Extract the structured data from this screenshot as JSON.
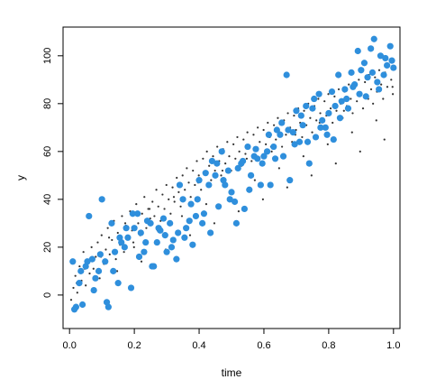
{
  "chart_data": {
    "type": "scatter",
    "title": "",
    "xlabel": "time",
    "ylabel": "y",
    "xlim": [
      -0.02,
      1.02
    ],
    "ylim": [
      -14,
      112
    ],
    "x_ticks": [
      {
        "value": 0.0,
        "label": "0.0"
      },
      {
        "value": 0.2,
        "label": "0.2"
      },
      {
        "value": 0.4,
        "label": "0.4"
      },
      {
        "value": 0.6,
        "label": "0.6"
      },
      {
        "value": 0.8,
        "label": "0.8"
      },
      {
        "value": 1.0,
        "label": "1.0"
      }
    ],
    "y_ticks": [
      {
        "value": 0,
        "label": "0"
      },
      {
        "value": 20,
        "label": "20"
      },
      {
        "value": 40,
        "label": "40"
      },
      {
        "value": 60,
        "label": "60"
      },
      {
        "value": 80,
        "label": "80"
      },
      {
        "value": 100,
        "label": "100"
      }
    ],
    "grid": false,
    "legend": "none",
    "colors": {
      "highlight": "#2f8fdc",
      "background_points": "#333333",
      "axis": "#000000"
    },
    "series": [
      {
        "color": "#2f8fdc",
        "marker": "large-dot",
        "x": [
          0.01,
          0.02,
          0.03,
          0.04,
          0.05,
          0.06,
          0.07,
          0.08,
          0.09,
          0.1,
          0.11,
          0.12,
          0.13,
          0.14,
          0.15,
          0.16,
          0.17,
          0.18,
          0.19,
          0.2,
          0.21,
          0.22,
          0.23,
          0.24,
          0.25,
          0.26,
          0.27,
          0.28,
          0.29,
          0.3,
          0.31,
          0.32,
          0.33,
          0.34,
          0.35,
          0.36,
          0.37,
          0.38,
          0.39,
          0.4,
          0.41,
          0.42,
          0.43,
          0.44,
          0.45,
          0.46,
          0.47,
          0.48,
          0.49,
          0.5,
          0.51,
          0.52,
          0.53,
          0.54,
          0.55,
          0.56,
          0.57,
          0.58,
          0.59,
          0.6,
          0.61,
          0.62,
          0.63,
          0.64,
          0.65,
          0.66,
          0.67,
          0.68,
          0.69,
          0.7,
          0.71,
          0.72,
          0.73,
          0.74,
          0.75,
          0.76,
          0.77,
          0.78,
          0.79,
          0.8,
          0.81,
          0.82,
          0.83,
          0.84,
          0.85,
          0.86,
          0.87,
          0.88,
          0.89,
          0.9,
          0.91,
          0.92,
          0.93,
          0.94,
          0.95,
          0.96,
          0.97,
          0.98,
          0.99,
          1.0,
          0.015,
          0.035,
          0.055,
          0.075,
          0.095,
          0.115,
          0.135,
          0.155,
          0.175,
          0.195,
          0.215,
          0.235,
          0.255,
          0.275,
          0.295,
          0.315,
          0.335,
          0.355,
          0.375,
          0.395,
          0.415,
          0.435,
          0.455,
          0.475,
          0.495,
          0.515,
          0.535,
          0.555,
          0.575,
          0.595,
          0.615,
          0.635,
          0.655,
          0.675,
          0.695,
          0.715,
          0.735,
          0.755,
          0.775,
          0.795,
          0.815,
          0.835,
          0.855,
          0.875,
          0.895,
          0.915,
          0.935,
          0.955,
          0.975,
          0.995
        ],
        "y": [
          14,
          -5,
          5,
          -4,
          12,
          33,
          15,
          7,
          10,
          40,
          14,
          -5,
          30,
          18,
          5,
          22,
          20,
          24,
          3,
          28,
          34,
          26,
          18,
          31,
          30,
          12,
          22,
          27,
          32,
          18,
          30,
          23,
          15,
          46,
          40,
          28,
          31,
          21,
          33,
          48,
          30,
          51,
          46,
          56,
          50,
          37,
          60,
          46,
          52,
          43,
          39,
          53,
          55,
          36,
          62,
          50,
          58,
          57,
          46,
          58,
          60,
          46,
          62,
          69,
          67,
          58,
          92,
          48,
          68,
          77,
          64,
          71,
          79,
          55,
          78,
          66,
          84,
          73,
          70,
          76,
          85,
          79,
          92,
          81,
          86,
          78,
          93,
          88,
          102,
          94,
          97,
          91,
          103,
          107,
          89,
          100,
          92,
          96,
          104,
          95,
          -6,
          10,
          14,
          2,
          17,
          -3,
          10,
          24,
          28,
          34,
          16,
          22,
          12,
          28,
          25,
          20,
          26,
          24,
          38,
          40,
          34,
          26,
          55,
          48,
          40,
          30,
          56,
          44,
          61,
          55,
          67,
          57,
          72,
          69,
          63,
          75,
          64,
          82,
          70,
          67,
          65,
          74,
          82,
          87,
          84,
          83,
          93,
          86,
          99,
          98
        ]
      },
      {
        "color": "#333333",
        "marker": "small-dot",
        "x": [
          0.005,
          0.012,
          0.018,
          0.024,
          0.031,
          0.037,
          0.043,
          0.05,
          0.056,
          0.062,
          0.068,
          0.074,
          0.081,
          0.087,
          0.093,
          0.099,
          0.106,
          0.112,
          0.118,
          0.124,
          0.131,
          0.137,
          0.143,
          0.149,
          0.156,
          0.162,
          0.168,
          0.174,
          0.181,
          0.187,
          0.193,
          0.199,
          0.206,
          0.212,
          0.218,
          0.224,
          0.231,
          0.237,
          0.243,
          0.249,
          0.256,
          0.262,
          0.268,
          0.274,
          0.281,
          0.287,
          0.293,
          0.299,
          0.306,
          0.312,
          0.318,
          0.324,
          0.331,
          0.337,
          0.343,
          0.349,
          0.356,
          0.362,
          0.368,
          0.374,
          0.381,
          0.387,
          0.393,
          0.399,
          0.406,
          0.412,
          0.418,
          0.424,
          0.431,
          0.437,
          0.443,
          0.449,
          0.456,
          0.462,
          0.468,
          0.474,
          0.481,
          0.487,
          0.493,
          0.499,
          0.506,
          0.512,
          0.518,
          0.524,
          0.531,
          0.537,
          0.543,
          0.549,
          0.556,
          0.562,
          0.568,
          0.574,
          0.581,
          0.587,
          0.593,
          0.599,
          0.606,
          0.612,
          0.618,
          0.624,
          0.631,
          0.637,
          0.643,
          0.649,
          0.656,
          0.662,
          0.668,
          0.674,
          0.681,
          0.687,
          0.693,
          0.699,
          0.706,
          0.712,
          0.718,
          0.724,
          0.731,
          0.737,
          0.743,
          0.749,
          0.756,
          0.762,
          0.768,
          0.774,
          0.781,
          0.787,
          0.793,
          0.799,
          0.806,
          0.812,
          0.818,
          0.824,
          0.831,
          0.837,
          0.843,
          0.849,
          0.856,
          0.862,
          0.868,
          0.874,
          0.881,
          0.887,
          0.893,
          0.899,
          0.906,
          0.912,
          0.918,
          0.924,
          0.931,
          0.937,
          0.943,
          0.949,
          0.956,
          0.962,
          0.968,
          0.974,
          0.981,
          0.987,
          0.993,
          0.998,
          0.022,
          0.047,
          0.072,
          0.097,
          0.122,
          0.147,
          0.172,
          0.197,
          0.222,
          0.247,
          0.272,
          0.297,
          0.322,
          0.347,
          0.372,
          0.397,
          0.422,
          0.447,
          0.472,
          0.497,
          0.522,
          0.547,
          0.572,
          0.597,
          0.622,
          0.647,
          0.672,
          0.697,
          0.722,
          0.747,
          0.772,
          0.797,
          0.822,
          0.847,
          0.872,
          0.897,
          0.922,
          0.947,
          0.972,
          0.997
        ],
        "y": [
          -2,
          3,
          8,
          1,
          12,
          6,
          18,
          4,
          14,
          9,
          20,
          11,
          16,
          22,
          7,
          25,
          13,
          19,
          28,
          17,
          23,
          31,
          15,
          26,
          21,
          33,
          18,
          29,
          24,
          35,
          27,
          20,
          38,
          30,
          25,
          34,
          41,
          28,
          36,
          32,
          39,
          33,
          44,
          37,
          31,
          42,
          36,
          46,
          40,
          34,
          45,
          39,
          49,
          43,
          37,
          50,
          44,
          53,
          47,
          41,
          52,
          46,
          56,
          50,
          44,
          57,
          51,
          60,
          54,
          48,
          58,
          52,
          62,
          56,
          50,
          61,
          55,
          64,
          58,
          52,
          63,
          57,
          66,
          60,
          54,
          65,
          59,
          68,
          62,
          56,
          67,
          61,
          70,
          64,
          58,
          69,
          63,
          72,
          66,
          60,
          71,
          65,
          74,
          68,
          62,
          73,
          67,
          76,
          70,
          64,
          75,
          69,
          78,
          72,
          66,
          77,
          71,
          80,
          74,
          68,
          79,
          73,
          82,
          76,
          70,
          81,
          75,
          84,
          78,
          72,
          83,
          77,
          86,
          80,
          74,
          85,
          79,
          88,
          82,
          76,
          87,
          81,
          90,
          84,
          78,
          89,
          83,
          92,
          86,
          80,
          91,
          85,
          94,
          88,
          82,
          93,
          87,
          96,
          90,
          84,
          5,
          11,
          2,
          16,
          24,
          10,
          30,
          22,
          14,
          36,
          27,
          19,
          41,
          33,
          25,
          47,
          38,
          30,
          52,
          43,
          35,
          57,
          48,
          40,
          62,
          53,
          45,
          67,
          58,
          50,
          72,
          63,
          55,
          77,
          68,
          60,
          82,
          73,
          65,
          87
        ]
      }
    ]
  }
}
